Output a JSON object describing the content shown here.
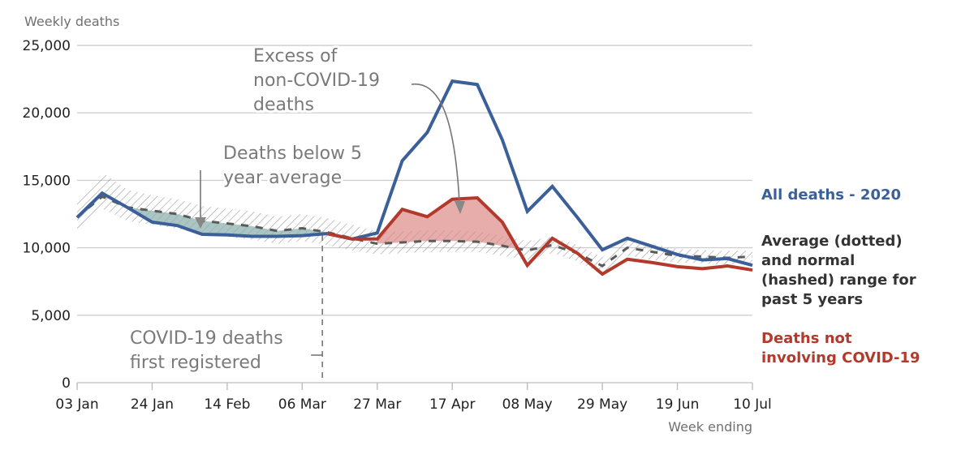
{
  "chart_data": {
    "type": "line",
    "title": "",
    "ylabel": "Weekly deaths",
    "xlabel": "Week ending",
    "ylim": [
      0,
      25000
    ],
    "yticks": [
      0,
      5000,
      10000,
      15000,
      20000,
      25000
    ],
    "ytick_labels": [
      "0",
      "5,000",
      "10,000",
      "15,000",
      "20,000",
      "25,000"
    ],
    "x": [
      "03 Jan",
      "10 Jan",
      "17 Jan",
      "24 Jan",
      "31 Jan",
      "07 Feb",
      "14 Feb",
      "21 Feb",
      "28 Feb",
      "06 Mar",
      "13 Mar",
      "20 Mar",
      "27 Mar",
      "03 Apr",
      "10 Apr",
      "17 Apr",
      "24 Apr",
      "01 May",
      "08 May",
      "15 May",
      "22 May",
      "29 May",
      "05 Jun",
      "12 Jun",
      "19 Jun",
      "26 Jun",
      "03 Jul",
      "10 Jul"
    ],
    "xtick_labels": [
      "03 Jan",
      "24 Jan",
      "14 Feb",
      "06 Mar",
      "27 Mar",
      "17 Apr",
      "08 May",
      "29 May",
      "19 Jun",
      "10 Jul"
    ],
    "grid": true,
    "series": [
      {
        "name": "All deaths - 2020",
        "color": "#3b5f99",
        "values": [
          12250,
          14050,
          13000,
          11900,
          11650,
          11000,
          10950,
          10850,
          10850,
          10900,
          11050,
          10650,
          11100,
          16450,
          18550,
          22350,
          22100,
          18000,
          12700,
          14550,
          12250,
          9850,
          10700,
          10100,
          9500,
          9100,
          9200,
          8700
        ]
      },
      {
        "name": "Deaths not involving COVID-19",
        "color": "#b2392b",
        "start_index": 10,
        "values": [
          null,
          null,
          null,
          null,
          null,
          null,
          null,
          null,
          null,
          null,
          11050,
          10650,
          10650,
          12850,
          12300,
          13600,
          13700,
          11900,
          8700,
          10700,
          9600,
          8050,
          9150,
          8900,
          8600,
          8450,
          8650,
          8350
        ]
      },
      {
        "name": "Average (dotted)",
        "color": "#5a5a5a",
        "style": "dashed",
        "values": [
          12250,
          13800,
          13000,
          12750,
          12500,
          12000,
          11800,
          11600,
          11250,
          11450,
          11150,
          10700,
          10300,
          10400,
          10500,
          10500,
          10450,
          10150,
          9800,
          10200,
          9600,
          8650,
          10000,
          9700,
          9400,
          9350,
          9250,
          9350
        ]
      },
      {
        "name": "Normal (hashed) range upper",
        "values": [
          13300,
          15600,
          14300,
          13900,
          13600,
          13100,
          12900,
          12700,
          12300,
          12500,
          12200,
          11700,
          11200,
          11200,
          11300,
          11300,
          11200,
          10900,
          10500,
          10800,
          10200,
          9300,
          10600,
          10300,
          9900,
          9850,
          9750,
          9800
        ]
      },
      {
        "name": "Normal (hashed) range lower",
        "values": [
          11300,
          12900,
          12000,
          11700,
          11400,
          11000,
          10800,
          10600,
          10300,
          10500,
          10200,
          9800,
          9500,
          9600,
          9700,
          9700,
          9700,
          9400,
          9100,
          9600,
          9000,
          8000,
          9400,
          9100,
          8900,
          8850,
          8750,
          8900
        ]
      }
    ],
    "legend": [
      {
        "text": [
          "All deaths - 2020"
        ],
        "color": "#3b5f99"
      },
      {
        "text": [
          "Average (dotted)",
          "and normal",
          "(hashed) range for",
          "past 5 years"
        ],
        "color": "#333333"
      },
      {
        "text": [
          "Deaths not",
          "involving COVID-19"
        ],
        "color": "#b2392b"
      }
    ],
    "legend_placement": "right",
    "annotations": [
      {
        "id": "excess",
        "text": [
          "Excess of",
          "non-COVID-19",
          "deaths"
        ]
      },
      {
        "id": "below",
        "text": [
          "Deaths below 5",
          "year average"
        ]
      },
      {
        "id": "first",
        "text": [
          "COVID-19 deaths",
          "first registered"
        ],
        "at": "13 Mar"
      }
    ],
    "shaded_regions": [
      {
        "name": "Deaths below 5 year average",
        "color": "#8fb1b0",
        "from": "17 Jan",
        "to": "13 Mar"
      },
      {
        "name": "Excess of non-COVID-19 deaths",
        "color": "#dc8a86",
        "from": "27 Mar",
        "to": "08 May"
      }
    ]
  }
}
